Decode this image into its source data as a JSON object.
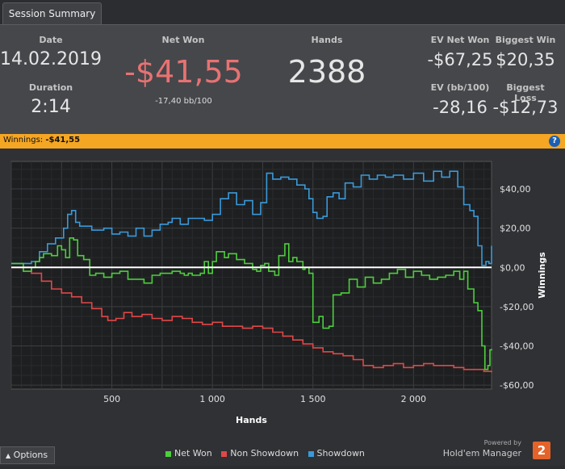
{
  "tab": {
    "label": "Session Summary"
  },
  "summary": {
    "date_label": "Date",
    "date": "14.02.2019",
    "duration_label": "Duration",
    "duration": "2:14",
    "net_won_label": "Net Won",
    "net_won": "-$41,55",
    "net_won_sub": "-17,40 bb/100",
    "hands_label": "Hands",
    "hands": "2388",
    "ev_net_won_label": "EV Net Won",
    "ev_net_won": "-$67,25",
    "biggest_win_label": "Biggest Win",
    "biggest_win": "$20,35",
    "ev_bb_label": "EV (bb/100)",
    "ev_bb": "-28,16",
    "biggest_loss_label": "Biggest Loss",
    "biggest_loss": "-$12,73"
  },
  "winnings_bar": {
    "label": "Winnings:",
    "value": "-$41,55",
    "help": "?"
  },
  "colors": {
    "net_won": "#4ccf3c",
    "non_showdown": "#e04848",
    "showdown": "#3a9ad9",
    "negative": "#e87272",
    "accent_bar": "#f5a623"
  },
  "options": {
    "label": "Options",
    "icon": "caret-up-icon"
  },
  "legend": {
    "net_won": "Net Won",
    "non_showdown": "Non Showdown",
    "showdown": "Showdown"
  },
  "brand": {
    "powered_by": "Powered by",
    "name": "Hold'em Manager",
    "logo": "2"
  },
  "chart_data": {
    "type": "line",
    "xlabel": "Hands",
    "ylabel": "Winnings",
    "xlim": [
      0,
      2388
    ],
    "ylim": [
      -62,
      54
    ],
    "x_ticks": [
      500,
      1000,
      1500,
      2000
    ],
    "x_tick_labels": [
      "500",
      "1 000",
      "1 500",
      "2 000"
    ],
    "y_ticks": [
      40,
      20,
      0,
      -20,
      -40,
      -60
    ],
    "y_tick_labels": [
      "$40,00",
      "$20,00",
      "$0,00",
      "-$20,00",
      "-$40,00",
      "-$60,00"
    ],
    "grid": true,
    "legend_position": "bottom",
    "series": [
      {
        "name": "Net Won",
        "key": "net_won",
        "points": [
          [
            0,
            2
          ],
          [
            60,
            -2
          ],
          [
            100,
            0
          ],
          [
            120,
            3
          ],
          [
            140,
            5
          ],
          [
            160,
            7
          ],
          [
            200,
            6
          ],
          [
            230,
            11
          ],
          [
            250,
            9
          ],
          [
            270,
            5
          ],
          [
            290,
            15
          ],
          [
            310,
            14
          ],
          [
            330,
            6
          ],
          [
            360,
            4
          ],
          [
            390,
            -4
          ],
          [
            420,
            -3
          ],
          [
            460,
            -5
          ],
          [
            500,
            -3
          ],
          [
            540,
            -2
          ],
          [
            580,
            -6
          ],
          [
            620,
            -6
          ],
          [
            660,
            -8
          ],
          [
            700,
            -4
          ],
          [
            740,
            -3
          ],
          [
            780,
            -3
          ],
          [
            800,
            -2
          ],
          [
            840,
            -3
          ],
          [
            860,
            -4
          ],
          [
            880,
            -3
          ],
          [
            900,
            -4
          ],
          [
            940,
            -3
          ],
          [
            960,
            3
          ],
          [
            980,
            -3
          ],
          [
            1000,
            3
          ],
          [
            1020,
            8
          ],
          [
            1060,
            5
          ],
          [
            1080,
            7
          ],
          [
            1120,
            4
          ],
          [
            1160,
            2
          ],
          [
            1200,
            -1
          ],
          [
            1220,
            -2
          ],
          [
            1240,
            1
          ],
          [
            1260,
            2
          ],
          [
            1280,
            -2
          ],
          [
            1310,
            -4
          ],
          [
            1330,
            6
          ],
          [
            1360,
            12
          ],
          [
            1380,
            3
          ],
          [
            1400,
            5
          ],
          [
            1420,
            3
          ],
          [
            1450,
            -1
          ],
          [
            1460,
            0
          ],
          [
            1480,
            -3
          ],
          [
            1500,
            -28
          ],
          [
            1530,
            -25
          ],
          [
            1550,
            -31
          ],
          [
            1580,
            -30
          ],
          [
            1600,
            -14
          ],
          [
            1640,
            -13
          ],
          [
            1680,
            -6
          ],
          [
            1720,
            -10
          ],
          [
            1760,
            -5
          ],
          [
            1800,
            -8
          ],
          [
            1840,
            -6
          ],
          [
            1880,
            -3
          ],
          [
            1920,
            -1
          ],
          [
            1960,
            -5
          ],
          [
            2000,
            -2
          ],
          [
            2040,
            -4
          ],
          [
            2080,
            -6
          ],
          [
            2120,
            -5
          ],
          [
            2160,
            -4
          ],
          [
            2200,
            -2
          ],
          [
            2230,
            -6
          ],
          [
            2250,
            -2
          ],
          [
            2270,
            -11
          ],
          [
            2300,
            -18
          ],
          [
            2320,
            -22
          ],
          [
            2340,
            -40
          ],
          [
            2355,
            -52
          ],
          [
            2370,
            -50
          ],
          [
            2380,
            -42
          ],
          [
            2388,
            -41.55
          ]
        ]
      },
      {
        "name": "Non Showdown",
        "key": "non_showdown",
        "points": [
          [
            0,
            0
          ],
          [
            100,
            -3
          ],
          [
            150,
            -7
          ],
          [
            200,
            -11
          ],
          [
            250,
            -13
          ],
          [
            300,
            -15
          ],
          [
            350,
            -18
          ],
          [
            400,
            -21
          ],
          [
            450,
            -25
          ],
          [
            480,
            -27
          ],
          [
            520,
            -26
          ],
          [
            560,
            -23
          ],
          [
            600,
            -25
          ],
          [
            650,
            -24
          ],
          [
            700,
            -26
          ],
          [
            750,
            -27
          ],
          [
            800,
            -25
          ],
          [
            850,
            -26
          ],
          [
            900,
            -28
          ],
          [
            950,
            -29
          ],
          [
            1000,
            -28
          ],
          [
            1050,
            -30
          ],
          [
            1100,
            -30
          ],
          [
            1150,
            -31
          ],
          [
            1200,
            -30
          ],
          [
            1250,
            -31
          ],
          [
            1300,
            -33
          ],
          [
            1350,
            -35
          ],
          [
            1400,
            -37
          ],
          [
            1450,
            -39
          ],
          [
            1500,
            -41
          ],
          [
            1550,
            -43
          ],
          [
            1600,
            -44
          ],
          [
            1650,
            -45
          ],
          [
            1700,
            -47
          ],
          [
            1750,
            -50
          ],
          [
            1800,
            -51
          ],
          [
            1850,
            -50
          ],
          [
            1900,
            -49
          ],
          [
            1950,
            -51
          ],
          [
            2000,
            -50
          ],
          [
            2050,
            -49
          ],
          [
            2100,
            -50
          ],
          [
            2150,
            -50
          ],
          [
            2200,
            -51
          ],
          [
            2250,
            -52
          ],
          [
            2300,
            -52
          ],
          [
            2350,
            -53
          ],
          [
            2388,
            -53.5
          ]
        ]
      },
      {
        "name": "Showdown",
        "key": "showdown",
        "points": [
          [
            0,
            2
          ],
          [
            50,
            2
          ],
          [
            100,
            3
          ],
          [
            140,
            8
          ],
          [
            180,
            12
          ],
          [
            220,
            15
          ],
          [
            260,
            20
          ],
          [
            280,
            27
          ],
          [
            300,
            29
          ],
          [
            320,
            23
          ],
          [
            340,
            21
          ],
          [
            400,
            19
          ],
          [
            460,
            20
          ],
          [
            500,
            17
          ],
          [
            540,
            18
          ],
          [
            580,
            16
          ],
          [
            620,
            20
          ],
          [
            660,
            16
          ],
          [
            700,
            19
          ],
          [
            740,
            22
          ],
          [
            780,
            23
          ],
          [
            800,
            25
          ],
          [
            840,
            22
          ],
          [
            880,
            25
          ],
          [
            920,
            25
          ],
          [
            960,
            24
          ],
          [
            1000,
            27
          ],
          [
            1040,
            35
          ],
          [
            1080,
            38
          ],
          [
            1120,
            32
          ],
          [
            1160,
            34
          ],
          [
            1200,
            27
          ],
          [
            1240,
            33
          ],
          [
            1270,
            48
          ],
          [
            1300,
            45
          ],
          [
            1340,
            46
          ],
          [
            1380,
            45
          ],
          [
            1420,
            42
          ],
          [
            1460,
            40
          ],
          [
            1480,
            35
          ],
          [
            1500,
            28
          ],
          [
            1520,
            25
          ],
          [
            1550,
            26
          ],
          [
            1570,
            36
          ],
          [
            1600,
            38
          ],
          [
            1630,
            35
          ],
          [
            1660,
            43
          ],
          [
            1700,
            41
          ],
          [
            1740,
            47
          ],
          [
            1780,
            45
          ],
          [
            1820,
            47
          ],
          [
            1860,
            46
          ],
          [
            1900,
            47
          ],
          [
            1950,
            45
          ],
          [
            2000,
            48
          ],
          [
            2050,
            44
          ],
          [
            2100,
            49
          ],
          [
            2140,
            46
          ],
          [
            2180,
            49
          ],
          [
            2220,
            41
          ],
          [
            2250,
            32
          ],
          [
            2280,
            29
          ],
          [
            2300,
            26
          ],
          [
            2320,
            11
          ],
          [
            2340,
            1
          ],
          [
            2360,
            3
          ],
          [
            2375,
            2
          ],
          [
            2388,
            11
          ]
        ]
      }
    ]
  }
}
